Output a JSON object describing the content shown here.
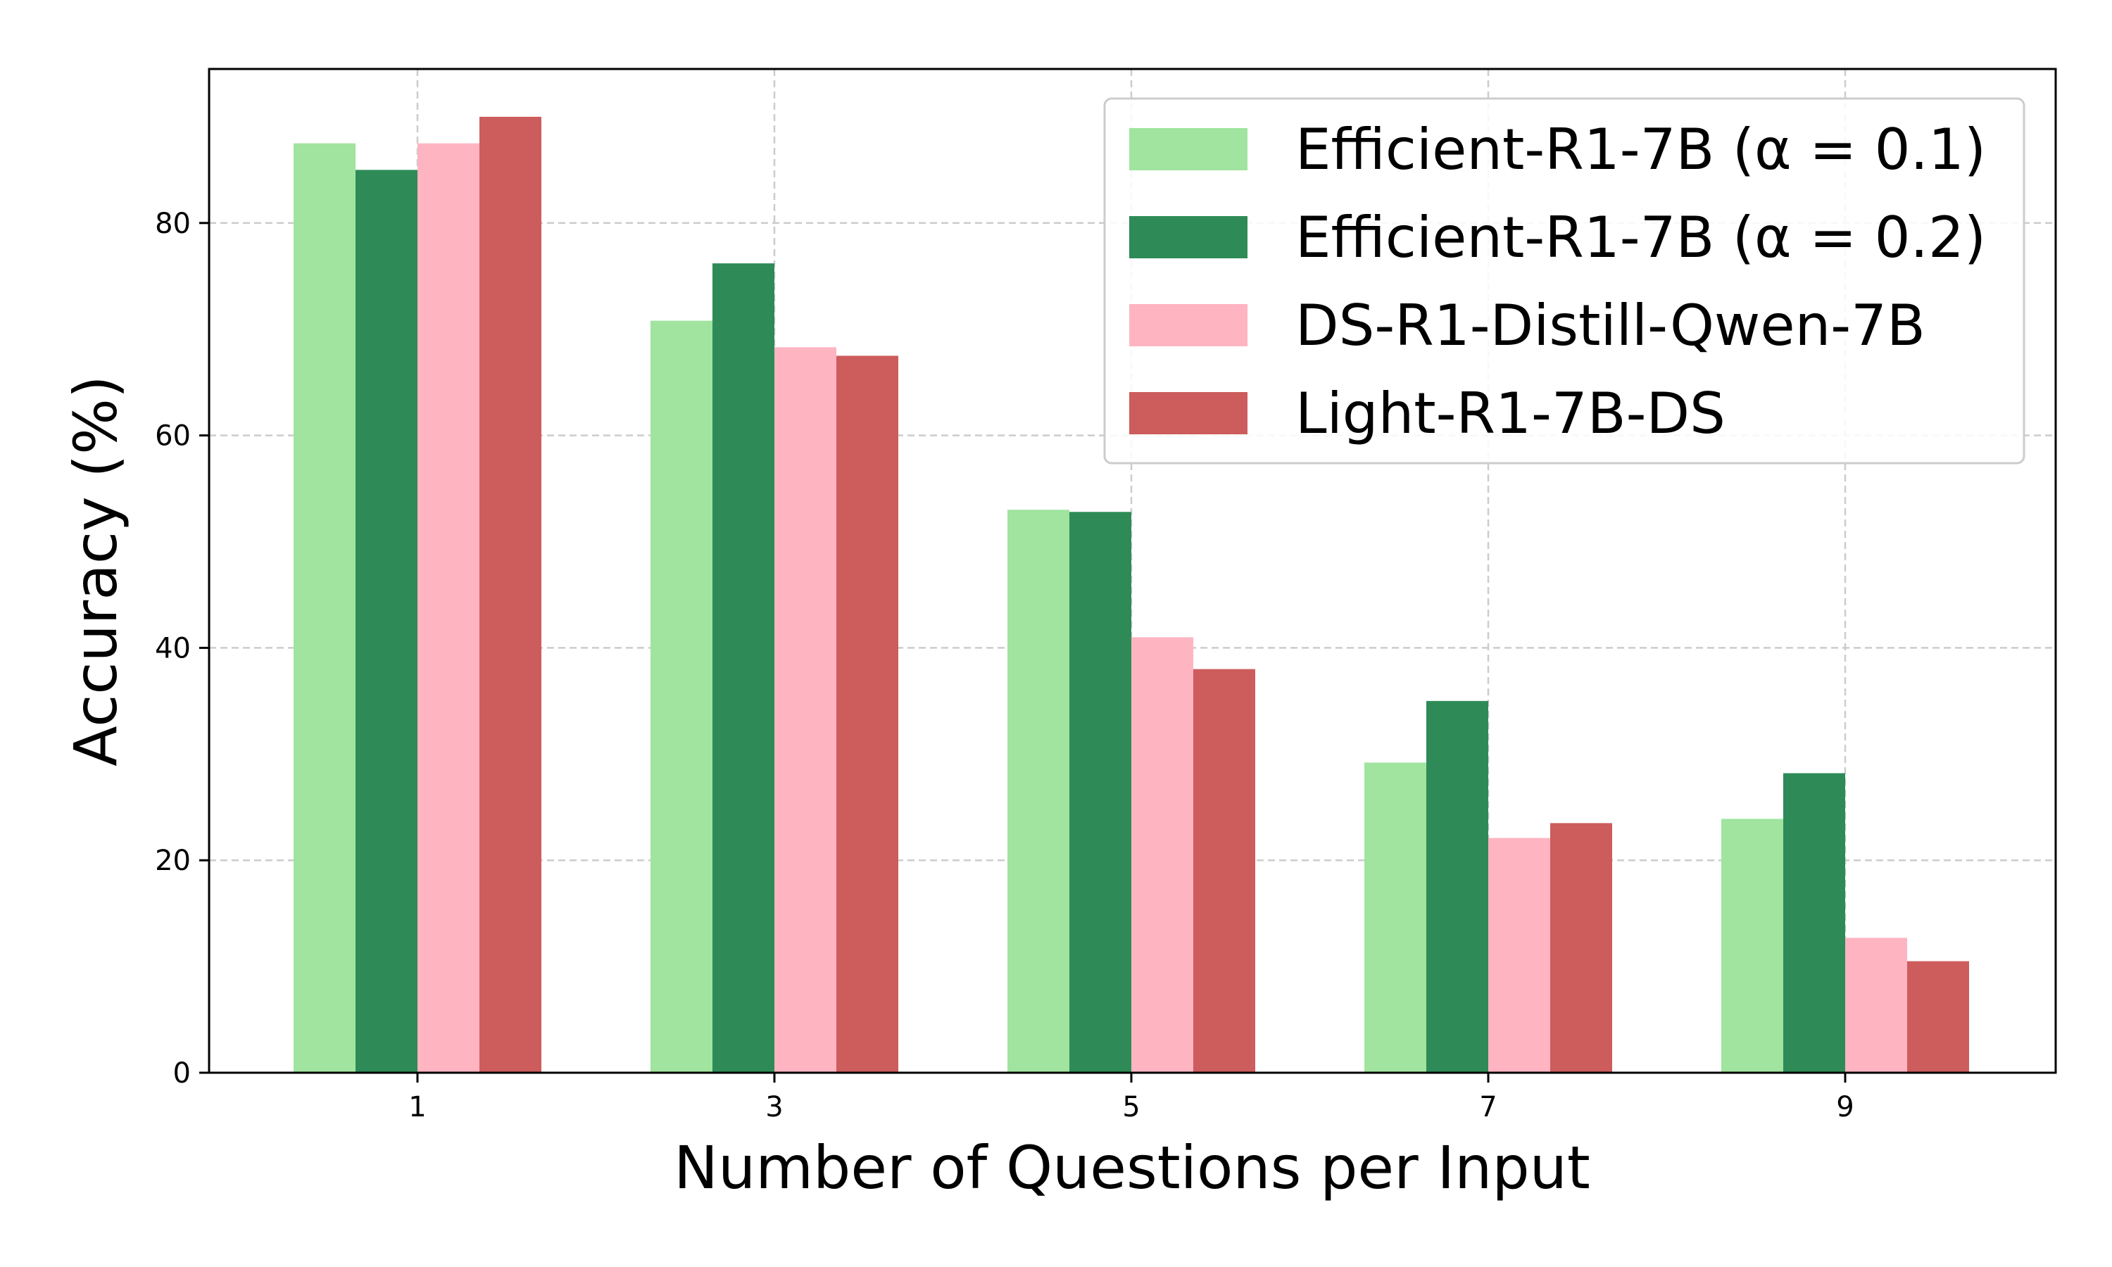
{
  "chart_data": {
    "type": "bar",
    "categories": [
      "1",
      "3",
      "5",
      "7",
      "9"
    ],
    "xlabel": "Number of Questions per Input",
    "ylabel": "Accuracy (%)",
    "ylim": [
      0,
      94.5
    ],
    "yticks": [
      0,
      20,
      40,
      60,
      80
    ],
    "grid": true,
    "legend_position": "top-right",
    "series": [
      {
        "name": "Efficient-R1-7B (α = 0.1)",
        "color": "#a0e49f",
        "values": [
          87.5,
          70.8,
          53.0,
          29.2,
          23.9
        ]
      },
      {
        "name": "Efficient-R1-7B (α = 0.2)",
        "color": "#2e8b57",
        "values": [
          85.0,
          76.2,
          52.8,
          35.0,
          28.2
        ]
      },
      {
        "name": "DS-R1-Distill-Qwen-7B",
        "color": "#ffb4c1",
        "values": [
          87.5,
          68.3,
          41.0,
          22.1,
          12.7
        ]
      },
      {
        "name": "Light-R1-7B-DS",
        "color": "#cd5c5c",
        "values": [
          90.0,
          67.5,
          38.0,
          23.5,
          10.5
        ]
      }
    ]
  }
}
